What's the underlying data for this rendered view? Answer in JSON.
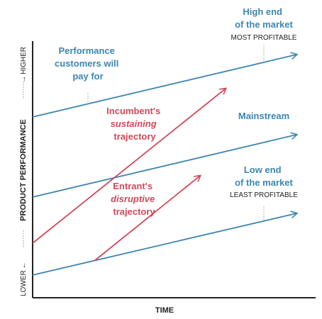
{
  "axes": {
    "x_label": "TIME",
    "y_label": "PRODUCT PERFORMANCE",
    "y_low": "LOWER",
    "y_high": "HIGHER"
  },
  "lines": {
    "performance": {
      "label": [
        "Performance",
        "customers will",
        "pay for"
      ],
      "color": "#3c86ad"
    },
    "high_end": {
      "label": [
        "High end",
        "of the market"
      ],
      "sublabel": "MOST PROFITABLE",
      "color": "#3c86ad"
    },
    "mainstream": {
      "label": "Mainstream",
      "color": "#3c86ad"
    },
    "low_end": {
      "label": [
        "Low end",
        "of the market"
      ],
      "sublabel": "LEAST PROFITABLE",
      "color": "#3c86ad"
    },
    "incumbent": {
      "label_line1": "Incumbent's",
      "label_line2": "sustaining",
      "label_line3": "trajectory",
      "color": "#d1485a"
    },
    "entrant": {
      "label_line1": "Entrant's",
      "label_line2": "disruptive",
      "label_line3": "trajectory",
      "color": "#d1485a"
    }
  },
  "colors": {
    "axis": "#222222",
    "blue": "#3c86ad",
    "red": "#d1485a"
  }
}
